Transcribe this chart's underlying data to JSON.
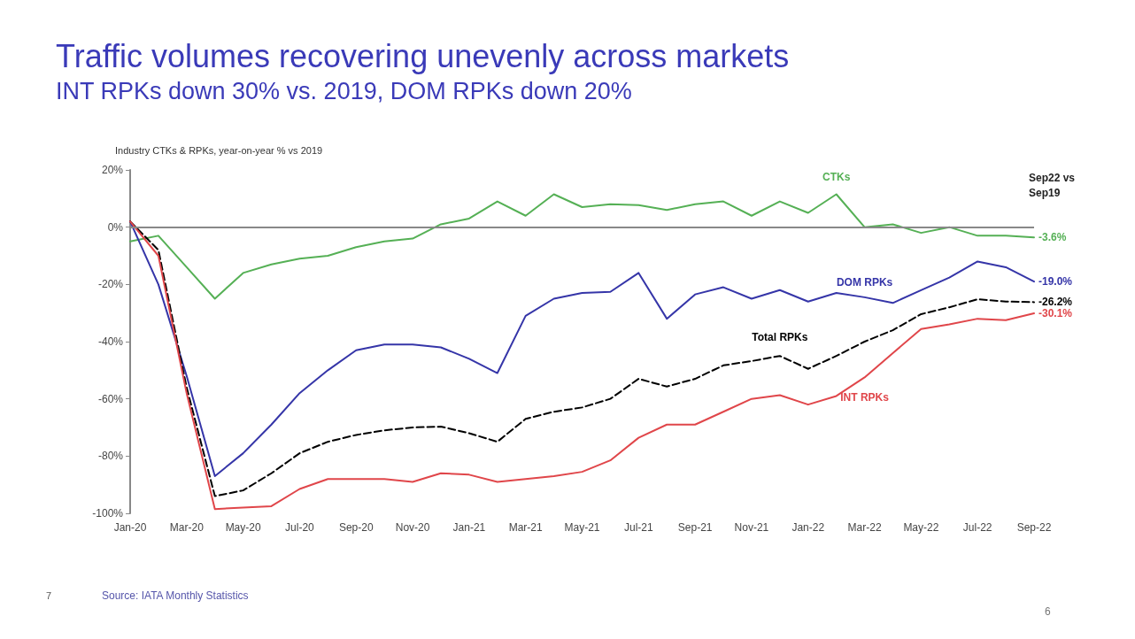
{
  "chart_data": {
    "type": "line",
    "title": "Traffic volumes recovering unevenly across markets",
    "subtitle": "INT RPKs down 30% vs. 2019, DOM RPKs down 20%",
    "ylabel": "Industry CTKs & RPKs, year-on-year % vs 2019",
    "categories": [
      "Jan-20",
      null,
      "Mar-20",
      null,
      "May-20",
      null,
      "Jul-20",
      null,
      "Sep-20",
      null,
      "Nov-20",
      null,
      "Jan-21",
      null,
      "Mar-21",
      null,
      "May-21",
      null,
      "Jul-21",
      null,
      "Sep-21",
      null,
      "Nov-21",
      null,
      "Jan-22",
      null,
      "Mar-22",
      null,
      "May-22",
      null,
      "Jul-22",
      null,
      "Sep-22"
    ],
    "series": [
      {
        "name": "CTKs",
        "color": "#55b055",
        "line_style": "solid",
        "values": [
          -5,
          -3,
          -14,
          -25,
          -16,
          -13,
          -11,
          -10,
          -7,
          -5,
          -4,
          1,
          3,
          9,
          4,
          11.5,
          7,
          8,
          7.7,
          6,
          8,
          9,
          4,
          9,
          5,
          11.5,
          0,
          1,
          -2,
          0,
          -3,
          -3,
          -3.6
        ],
        "value_labels": [
          null,
          null,
          null,
          null,
          null,
          null,
          null,
          null,
          null,
          null,
          null,
          null,
          null,
          null,
          null,
          null,
          null,
          null,
          null,
          null,
          null,
          null,
          null,
          null,
          null,
          null,
          null,
          null,
          null,
          null,
          null,
          null,
          "-3.6%"
        ]
      },
      {
        "name": "DOM RPKs",
        "color": "#3535a8",
        "line_style": "solid",
        "values": [
          2,
          -20,
          -52,
          -87,
          -79,
          -69,
          -58,
          -50,
          -43,
          -41,
          -41,
          -42,
          -46,
          -51,
          -31,
          -25,
          -23,
          -22.6,
          -16,
          -32,
          -23.5,
          -21,
          -25,
          -22,
          -26,
          -23,
          -24.5,
          -26.5,
          -22,
          -17.6,
          -12,
          -14,
          -19
        ],
        "value_labels": [
          null,
          null,
          null,
          null,
          null,
          null,
          null,
          null,
          null,
          null,
          null,
          null,
          null,
          null,
          null,
          null,
          null,
          null,
          null,
          null,
          null,
          null,
          null,
          null,
          null,
          null,
          null,
          null,
          null,
          null,
          null,
          null,
          "-19.0%"
        ]
      },
      {
        "name": "Total RPKs",
        "color": "#000000",
        "line_style": "dashed",
        "values": [
          2,
          -8,
          -56,
          -94,
          -92,
          -86,
          -79,
          -75,
          -72.6,
          -71,
          -70,
          -69.7,
          -72,
          -75,
          -67,
          -64.5,
          -63,
          -60,
          -53,
          -55.7,
          -53,
          -48.3,
          -46.8,
          -45,
          -49.5,
          -45,
          -40,
          -36,
          -30.4,
          -28,
          -25.2,
          -26,
          -26.2
        ],
        "value_labels": [
          null,
          null,
          null,
          null,
          null,
          null,
          null,
          null,
          null,
          null,
          null,
          null,
          null,
          null,
          null,
          null,
          null,
          null,
          null,
          null,
          null,
          null,
          null,
          null,
          null,
          null,
          null,
          null,
          null,
          null,
          null,
          null,
          "-26.2%"
        ]
      },
      {
        "name": "INT RPKs",
        "color": "#e0464a",
        "line_style": "solid",
        "values": [
          2,
          -10,
          -58,
          -98.5,
          -98,
          -97.5,
          -91.5,
          -88,
          -88,
          -88,
          -89,
          -86,
          -86.5,
          -89,
          -88,
          -87,
          -85.5,
          -81.5,
          -73.6,
          -69,
          -69,
          -64.5,
          -60,
          -58.7,
          -62,
          -59,
          -52.5,
          -44,
          -35.6,
          -34,
          -32,
          -32.5,
          -30.1
        ],
        "value_labels": [
          null,
          null,
          null,
          null,
          null,
          null,
          null,
          null,
          null,
          null,
          null,
          null,
          null,
          null,
          null,
          null,
          null,
          null,
          null,
          null,
          null,
          null,
          null,
          null,
          null,
          null,
          null,
          null,
          null,
          null,
          null,
          null,
          "-30.1%"
        ]
      }
    ],
    "ylim": [
      -100,
      20
    ],
    "yticks": [
      {
        "value": -100,
        "label": "-100%"
      },
      {
        "value": -80,
        "label": "-80%"
      },
      {
        "value": -60,
        "label": "-60%"
      },
      {
        "value": -40,
        "label": "-40%"
      },
      {
        "value": -20,
        "label": "-20%"
      },
      {
        "value": 0,
        "label": "0%"
      },
      {
        "value": 20,
        "label": "20%"
      }
    ],
    "ref_lines": [
      {
        "axis": "y",
        "value": 0,
        "color": "#888888"
      }
    ],
    "marker": "none",
    "grid": false,
    "legend": false,
    "annotations": [
      "Sep22 vs Sep19",
      "Source: IATA Monthly Statistics",
      "7",
      "6"
    ]
  }
}
